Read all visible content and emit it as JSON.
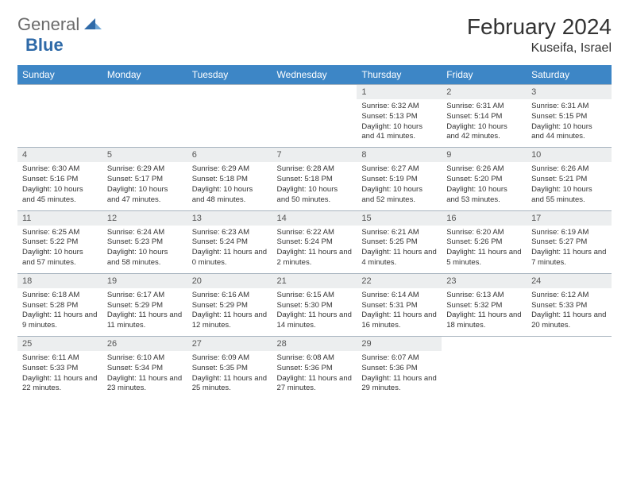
{
  "logo": {
    "text1": "General",
    "text2": "Blue"
  },
  "title": "February 2024",
  "location": "Kuseifa, Israel",
  "colors": {
    "header_bg": "#3d86c6",
    "header_fg": "#ffffff",
    "daynum_bg": "#eceeef",
    "border": "#a8b4bf",
    "logo_gray": "#6b6b6b",
    "logo_blue": "#2f6aa8"
  },
  "weekdays": [
    "Sunday",
    "Monday",
    "Tuesday",
    "Wednesday",
    "Thursday",
    "Friday",
    "Saturday"
  ],
  "weeks": [
    [
      null,
      null,
      null,
      null,
      {
        "n": "1",
        "sr": "6:32 AM",
        "ss": "5:13 PM",
        "dl": "10 hours and 41 minutes."
      },
      {
        "n": "2",
        "sr": "6:31 AM",
        "ss": "5:14 PM",
        "dl": "10 hours and 42 minutes."
      },
      {
        "n": "3",
        "sr": "6:31 AM",
        "ss": "5:15 PM",
        "dl": "10 hours and 44 minutes."
      }
    ],
    [
      {
        "n": "4",
        "sr": "6:30 AM",
        "ss": "5:16 PM",
        "dl": "10 hours and 45 minutes."
      },
      {
        "n": "5",
        "sr": "6:29 AM",
        "ss": "5:17 PM",
        "dl": "10 hours and 47 minutes."
      },
      {
        "n": "6",
        "sr": "6:29 AM",
        "ss": "5:18 PM",
        "dl": "10 hours and 48 minutes."
      },
      {
        "n": "7",
        "sr": "6:28 AM",
        "ss": "5:18 PM",
        "dl": "10 hours and 50 minutes."
      },
      {
        "n": "8",
        "sr": "6:27 AM",
        "ss": "5:19 PM",
        "dl": "10 hours and 52 minutes."
      },
      {
        "n": "9",
        "sr": "6:26 AM",
        "ss": "5:20 PM",
        "dl": "10 hours and 53 minutes."
      },
      {
        "n": "10",
        "sr": "6:26 AM",
        "ss": "5:21 PM",
        "dl": "10 hours and 55 minutes."
      }
    ],
    [
      {
        "n": "11",
        "sr": "6:25 AM",
        "ss": "5:22 PM",
        "dl": "10 hours and 57 minutes."
      },
      {
        "n": "12",
        "sr": "6:24 AM",
        "ss": "5:23 PM",
        "dl": "10 hours and 58 minutes."
      },
      {
        "n": "13",
        "sr": "6:23 AM",
        "ss": "5:24 PM",
        "dl": "11 hours and 0 minutes."
      },
      {
        "n": "14",
        "sr": "6:22 AM",
        "ss": "5:24 PM",
        "dl": "11 hours and 2 minutes."
      },
      {
        "n": "15",
        "sr": "6:21 AM",
        "ss": "5:25 PM",
        "dl": "11 hours and 4 minutes."
      },
      {
        "n": "16",
        "sr": "6:20 AM",
        "ss": "5:26 PM",
        "dl": "11 hours and 5 minutes."
      },
      {
        "n": "17",
        "sr": "6:19 AM",
        "ss": "5:27 PM",
        "dl": "11 hours and 7 minutes."
      }
    ],
    [
      {
        "n": "18",
        "sr": "6:18 AM",
        "ss": "5:28 PM",
        "dl": "11 hours and 9 minutes."
      },
      {
        "n": "19",
        "sr": "6:17 AM",
        "ss": "5:29 PM",
        "dl": "11 hours and 11 minutes."
      },
      {
        "n": "20",
        "sr": "6:16 AM",
        "ss": "5:29 PM",
        "dl": "11 hours and 12 minutes."
      },
      {
        "n": "21",
        "sr": "6:15 AM",
        "ss": "5:30 PM",
        "dl": "11 hours and 14 minutes."
      },
      {
        "n": "22",
        "sr": "6:14 AM",
        "ss": "5:31 PM",
        "dl": "11 hours and 16 minutes."
      },
      {
        "n": "23",
        "sr": "6:13 AM",
        "ss": "5:32 PM",
        "dl": "11 hours and 18 minutes."
      },
      {
        "n": "24",
        "sr": "6:12 AM",
        "ss": "5:33 PM",
        "dl": "11 hours and 20 minutes."
      }
    ],
    [
      {
        "n": "25",
        "sr": "6:11 AM",
        "ss": "5:33 PM",
        "dl": "11 hours and 22 minutes."
      },
      {
        "n": "26",
        "sr": "6:10 AM",
        "ss": "5:34 PM",
        "dl": "11 hours and 23 minutes."
      },
      {
        "n": "27",
        "sr": "6:09 AM",
        "ss": "5:35 PM",
        "dl": "11 hours and 25 minutes."
      },
      {
        "n": "28",
        "sr": "6:08 AM",
        "ss": "5:36 PM",
        "dl": "11 hours and 27 minutes."
      },
      {
        "n": "29",
        "sr": "6:07 AM",
        "ss": "5:36 PM",
        "dl": "11 hours and 29 minutes."
      },
      null,
      null
    ]
  ],
  "labels": {
    "sunrise": "Sunrise: ",
    "sunset": "Sunset: ",
    "daylight": "Daylight: "
  }
}
